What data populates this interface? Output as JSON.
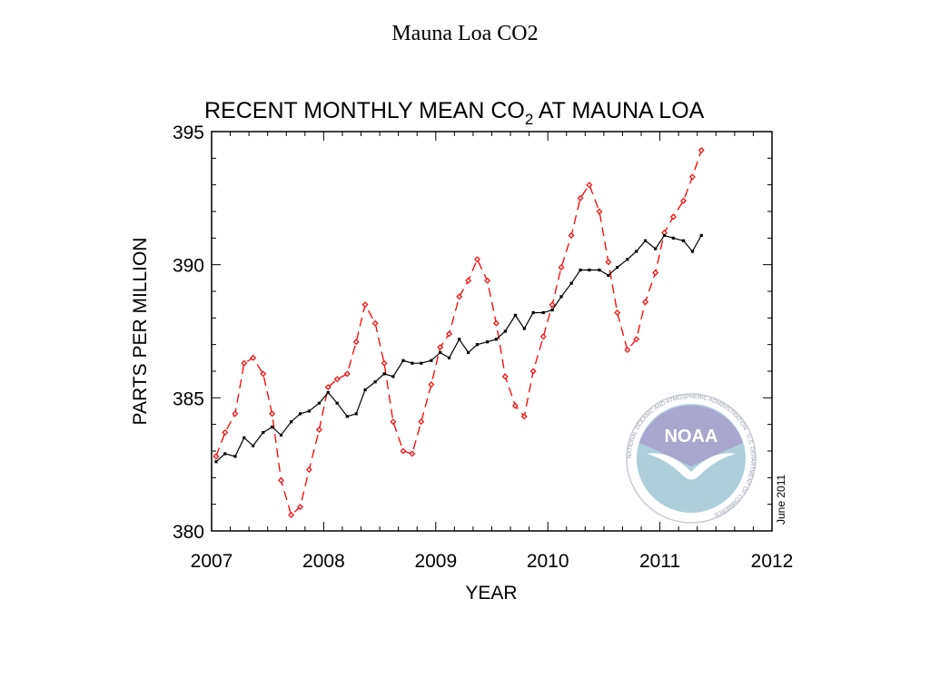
{
  "slide": {
    "title": "Mauna Loa CO2"
  },
  "chart_data": {
    "type": "line",
    "title": "RECENT MONTHLY MEAN CO",
    "title_subscript": "2",
    "title_suffix": " AT MAUNA LOA",
    "xlabel": "YEAR",
    "ylabel": "PARTS PER MILLION",
    "xlim": [
      2007,
      2012
    ],
    "ylim": [
      380,
      395
    ],
    "x_ticks": [
      "2007",
      "2008",
      "2009",
      "2010",
      "2011",
      "2012"
    ],
    "y_ticks": [
      "380",
      "385",
      "390",
      "395"
    ],
    "grid": false,
    "annotation": "June 2011",
    "logo_text": "NOAA",
    "logo_ring_text": "NATIONAL OCEANIC AND ATMOSPHERIC ADMINISTRATION · U.S. DEPARTMENT OF COMMERCE",
    "series": [
      {
        "color": "#ff0000",
        "style": "dashed",
        "marker": "diamond",
        "x": [
          2007.04,
          2007.12,
          2007.21,
          2007.29,
          2007.37,
          2007.46,
          2007.54,
          2007.62,
          2007.71,
          2007.79,
          2007.87,
          2007.96,
          2008.04,
          2008.12,
          2008.21,
          2008.29,
          2008.37,
          2008.46,
          2008.54,
          2008.62,
          2008.71,
          2008.79,
          2008.87,
          2008.96,
          2009.04,
          2009.12,
          2009.21,
          2009.29,
          2009.37,
          2009.46,
          2009.54,
          2009.62,
          2009.71,
          2009.79,
          2009.87,
          2009.96,
          2010.04,
          2010.12,
          2010.21,
          2010.29,
          2010.37,
          2010.46,
          2010.54,
          2010.62,
          2010.71,
          2010.79,
          2010.87,
          2010.96,
          2011.04,
          2011.12,
          2011.21,
          2011.29,
          2011.37
        ],
        "values": [
          382.8,
          383.7,
          384.4,
          386.3,
          386.5,
          385.9,
          384.4,
          381.9,
          380.6,
          380.9,
          382.3,
          383.8,
          385.4,
          385.7,
          385.9,
          387.1,
          388.5,
          387.8,
          386.3,
          384.1,
          383.0,
          382.9,
          384.1,
          385.5,
          386.9,
          387.4,
          388.8,
          389.4,
          390.2,
          389.4,
          387.8,
          385.8,
          384.7,
          384.3,
          386.0,
          387.3,
          388.5,
          389.9,
          391.1,
          392.5,
          393.0,
          392.0,
          390.1,
          388.2,
          386.8,
          387.2,
          388.6,
          389.7,
          391.2,
          391.8,
          392.4,
          393.3,
          394.3
        ]
      },
      {
        "color": "#000000",
        "style": "solid",
        "marker": "square",
        "x": [
          2007.04,
          2007.12,
          2007.21,
          2007.29,
          2007.37,
          2007.46,
          2007.54,
          2007.62,
          2007.71,
          2007.79,
          2007.87,
          2007.96,
          2008.04,
          2008.12,
          2008.21,
          2008.29,
          2008.37,
          2008.46,
          2008.54,
          2008.62,
          2008.71,
          2008.79,
          2008.87,
          2008.96,
          2009.04,
          2009.12,
          2009.21,
          2009.29,
          2009.37,
          2009.46,
          2009.54,
          2009.62,
          2009.71,
          2009.79,
          2009.87,
          2009.96,
          2010.04,
          2010.12,
          2010.21,
          2010.29,
          2010.37,
          2010.46,
          2010.54,
          2010.62,
          2010.71,
          2010.79,
          2010.87,
          2010.96,
          2011.04,
          2011.12,
          2011.21,
          2011.29,
          2011.37
        ],
        "values": [
          382.6,
          382.9,
          382.8,
          383.5,
          383.2,
          383.7,
          383.9,
          383.6,
          384.1,
          384.4,
          384.5,
          384.8,
          385.2,
          384.8,
          384.3,
          384.4,
          385.3,
          385.6,
          385.9,
          385.8,
          386.4,
          386.3,
          386.3,
          386.4,
          386.7,
          386.5,
          387.2,
          386.7,
          387.0,
          387.1,
          387.2,
          387.5,
          388.1,
          387.6,
          388.2,
          388.2,
          388.3,
          388.8,
          389.3,
          389.8,
          389.8,
          389.8,
          389.6,
          389.9,
          390.2,
          390.5,
          390.9,
          390.6,
          391.1,
          391.0,
          390.9,
          390.5,
          391.1
        ]
      }
    ]
  }
}
